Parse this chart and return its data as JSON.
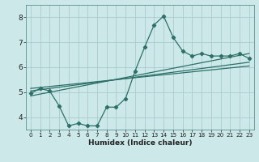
{
  "xlabel": "Humidex (Indice chaleur)",
  "bg_color": "#cce8e8",
  "grid_color": "#aacccc",
  "line_color": "#2d7068",
  "xlim": [
    -0.5,
    23.5
  ],
  "ylim": [
    3.5,
    8.5
  ],
  "yticks": [
    4,
    5,
    6,
    7,
    8
  ],
  "xticks": [
    0,
    1,
    2,
    3,
    4,
    5,
    6,
    7,
    8,
    9,
    10,
    11,
    12,
    13,
    14,
    15,
    16,
    17,
    18,
    19,
    20,
    21,
    22,
    23
  ],
  "series1_x": [
    0,
    1,
    2,
    3,
    4,
    5,
    6,
    7,
    8,
    9,
    10,
    11,
    12,
    13,
    14,
    15,
    16,
    17,
    18,
    19,
    20,
    21,
    22,
    23
  ],
  "series1_y": [
    4.95,
    5.15,
    5.05,
    4.45,
    3.65,
    3.75,
    3.65,
    3.65,
    4.4,
    4.4,
    4.75,
    5.85,
    6.8,
    7.7,
    8.05,
    7.2,
    6.65,
    6.45,
    6.55,
    6.45,
    6.45,
    6.45,
    6.55,
    6.35
  ],
  "trend1_x": [
    0,
    23
  ],
  "trend1_y": [
    4.85,
    6.55
  ],
  "trend2_x": [
    0,
    23
  ],
  "trend2_y": [
    5.05,
    6.2
  ],
  "trend3_x": [
    0,
    23
  ],
  "trend3_y": [
    5.15,
    6.05
  ]
}
